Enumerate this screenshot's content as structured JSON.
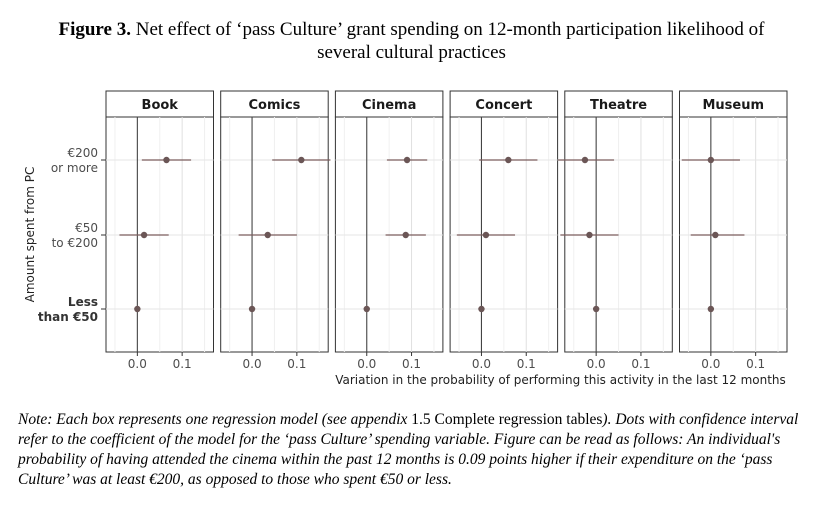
{
  "figure": {
    "label": "Figure 3.",
    "title_line1": "Net effect of ‘pass Culture’ grant spending on 12-month participation likelihood of",
    "title_line2": "several cultural practices"
  },
  "note": {
    "part1": "Note: Each box represents one regression model (see appendix ",
    "ref": "1.5 Complete regression tables",
    "part2": "). Dots with confidence interval refer to the coefficient of the model for the ‘pass Culture’ spending variable. Figure can be read as follows: An individual's probability of having attended the cinema within the past 12 months is 0.09 points higher if their expenditure on the ‘pass Culture’ was at least €200, as opposed to those who spent €50 or less."
  },
  "chart_data": {
    "type": "point-range",
    "xlabel": "Variation in the probability of performing this activity in the last 12 months",
    "ylabel": "Amount spent from PC",
    "xlim": [
      -0.07,
      0.17
    ],
    "xticks": [
      0.0,
      0.1
    ],
    "xtick_labels": [
      "0.0",
      "0.1"
    ],
    "categories": [
      {
        "line1": "€200",
        "line2": "or more",
        "bold": false
      },
      {
        "line1": "€50",
        "line2": "to €200",
        "bold": false
      },
      {
        "line1": "Less",
        "line2": "than €50",
        "bold": true
      }
    ],
    "panels": [
      {
        "name": "Book",
        "points": [
          {
            "est": 0.065,
            "lo": 0.01,
            "hi": 0.12
          },
          {
            "est": 0.015,
            "lo": -0.04,
            "hi": 0.07
          },
          {
            "est": 0.0,
            "lo": null,
            "hi": null
          }
        ]
      },
      {
        "name": "Comics",
        "points": [
          {
            "est": 0.11,
            "lo": 0.045,
            "hi": 0.175
          },
          {
            "est": 0.035,
            "lo": -0.03,
            "hi": 0.1
          },
          {
            "est": 0.0,
            "lo": null,
            "hi": null
          }
        ]
      },
      {
        "name": "Cinema",
        "points": [
          {
            "est": 0.09,
            "lo": 0.045,
            "hi": 0.135
          },
          {
            "est": 0.087,
            "lo": 0.042,
            "hi": 0.132
          },
          {
            "est": 0.0,
            "lo": null,
            "hi": null
          }
        ]
      },
      {
        "name": "Concert",
        "points": [
          {
            "est": 0.06,
            "lo": -0.005,
            "hi": 0.125
          },
          {
            "est": 0.01,
            "lo": -0.055,
            "hi": 0.075
          },
          {
            "est": 0.0,
            "lo": null,
            "hi": null
          }
        ]
      },
      {
        "name": "Theatre",
        "points": [
          {
            "est": -0.025,
            "lo": -0.085,
            "hi": 0.04
          },
          {
            "est": -0.015,
            "lo": -0.08,
            "hi": 0.05
          },
          {
            "est": 0.0,
            "lo": null,
            "hi": null
          }
        ]
      },
      {
        "name": "Museum",
        "points": [
          {
            "est": 0.0,
            "lo": -0.065,
            "hi": 0.065
          },
          {
            "est": 0.01,
            "lo": -0.045,
            "hi": 0.075
          },
          {
            "est": 0.0,
            "lo": null,
            "hi": null
          }
        ]
      }
    ]
  }
}
